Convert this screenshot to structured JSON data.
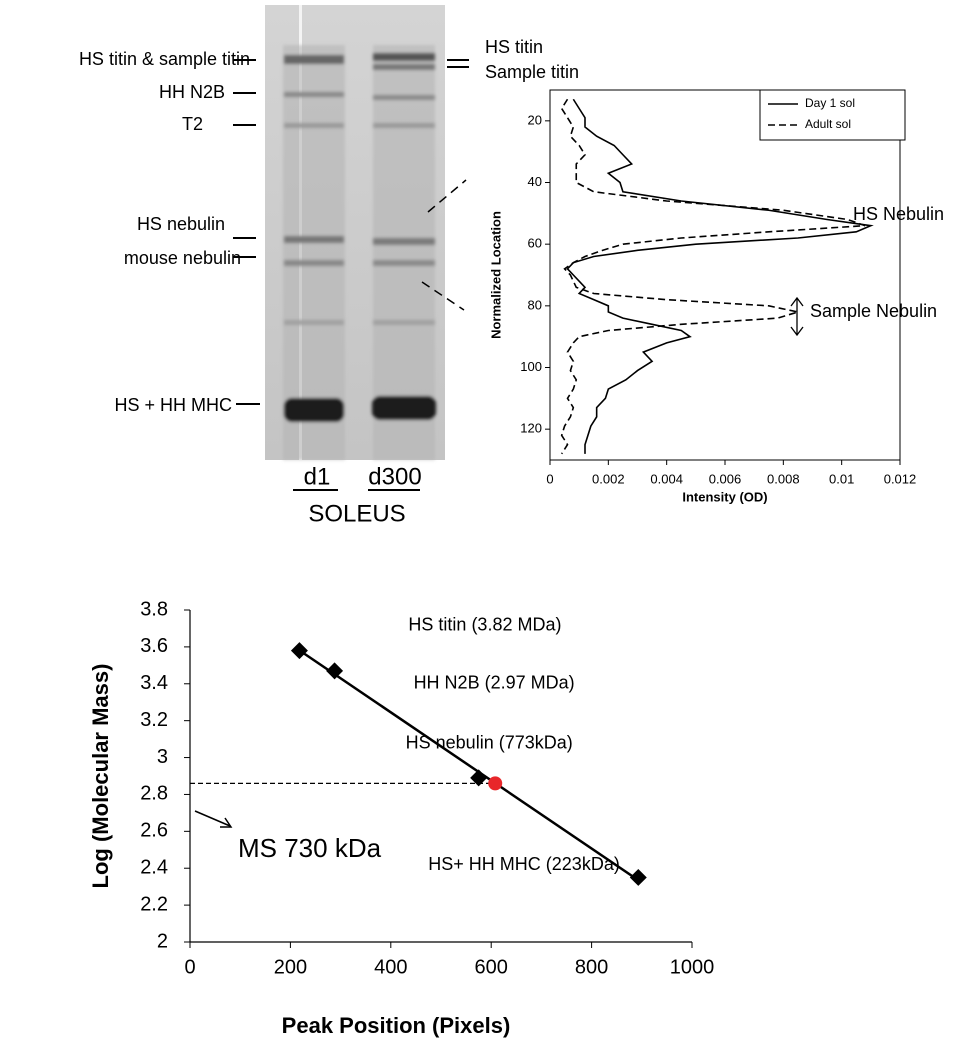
{
  "gel": {
    "left_labels": [
      "HS titin & sample titin",
      "HH N2B",
      "T2",
      "HS nebulin",
      "mouse nebulin",
      "HS + HH MHC"
    ],
    "right_labels": [
      "HS titin",
      "Sample titin"
    ],
    "lanes": [
      "d1",
      "d300"
    ],
    "muscle": "SOLEUS"
  },
  "chart_data": [
    {
      "type": "profile",
      "orientation": "horizontal",
      "x_label": "Intensity (OD)",
      "y_label": "Normalized Location",
      "x": [
        13,
        16,
        19,
        22,
        25,
        28,
        31,
        34,
        37,
        40,
        43,
        46,
        49,
        52,
        54,
        56,
        58,
        60,
        62,
        64,
        66,
        68,
        70,
        72,
        74,
        76,
        78,
        80,
        82,
        84,
        86,
        88,
        90,
        92,
        95,
        98,
        101,
        104,
        107,
        110,
        113,
        116,
        119,
        122,
        125,
        128
      ],
      "series": [
        {
          "name": "Day 1 sol",
          "color": "#000000",
          "dash": "solid",
          "values": [
            0.0008,
            0.001,
            0.0012,
            0.0012,
            0.0016,
            0.0022,
            0.0025,
            0.0028,
            0.002,
            0.0024,
            0.0025,
            0.0045,
            0.0075,
            0.0095,
            0.011,
            0.0105,
            0.0085,
            0.005,
            0.003,
            0.0015,
            0.0008,
            0.0006,
            0.0008,
            0.001,
            0.0012,
            0.001,
            0.0015,
            0.002,
            0.002,
            0.0025,
            0.0035,
            0.0045,
            0.0048,
            0.004,
            0.0032,
            0.0035,
            0.003,
            0.0026,
            0.002,
            0.0019,
            0.0016,
            0.0016,
            0.0014,
            0.0013,
            0.0012,
            0.0012
          ]
        },
        {
          "name": "Adult sol",
          "color": "#000000",
          "dash": "dashed",
          "values": [
            0.0006,
            0.0004,
            0.0006,
            0.0008,
            0.0007,
            0.001,
            0.0012,
            0.0009,
            0.0009,
            0.0009,
            0.0015,
            0.004,
            0.008,
            0.0102,
            0.0108,
            0.0075,
            0.0045,
            0.0025,
            0.0018,
            0.0012,
            0.0008,
            0.0005,
            0.0007,
            0.0008,
            0.0009,
            0.0015,
            0.004,
            0.0075,
            0.0085,
            0.0078,
            0.0045,
            0.002,
            0.001,
            0.0008,
            0.0006,
            0.0008,
            0.0007,
            0.0009,
            0.0008,
            0.0006,
            0.0008,
            0.0007,
            0.0005,
            0.0004,
            0.0006,
            0.0004
          ]
        }
      ],
      "xlim": [
        0,
        0.012
      ],
      "xticks": [
        0,
        0.002,
        0.004,
        0.006,
        0.008,
        0.01,
        0.012
      ],
      "ylim": [
        10,
        130
      ],
      "y_inverted": true,
      "yticks": [
        20,
        40,
        60,
        80,
        100,
        120
      ],
      "legend": "top-right",
      "annotations": [
        "HS Nebulin",
        "Sample Nebulin"
      ]
    },
    {
      "type": "scatter",
      "x_label": "Peak Position (Pixels)",
      "y_label": "Log (Molecular Mass)",
      "x": [
        218,
        288,
        575,
        893
      ],
      "values": [
        3.58,
        3.47,
        2.89,
        2.35
      ],
      "point_labels": [
        "HS titin (3.82 MDa)",
        "HH N2B (2.97 MDa)",
        "HS nebulin (773kDa)",
        "HS+ HH MHC (223kDa)"
      ],
      "color": "#000000",
      "fit_line": true,
      "sample": {
        "x": 608,
        "value": 2.86,
        "label": "MS 730 kDa",
        "color": "#e8262a"
      },
      "xlim": [
        0,
        1000
      ],
      "xticks": [
        0,
        200,
        400,
        600,
        800,
        1000
      ],
      "ylim": [
        2,
        3.8
      ],
      "yticks": [
        2,
        2.2,
        2.4,
        2.6,
        2.8,
        3,
        3.2,
        3.4,
        3.6,
        3.8
      ]
    }
  ]
}
